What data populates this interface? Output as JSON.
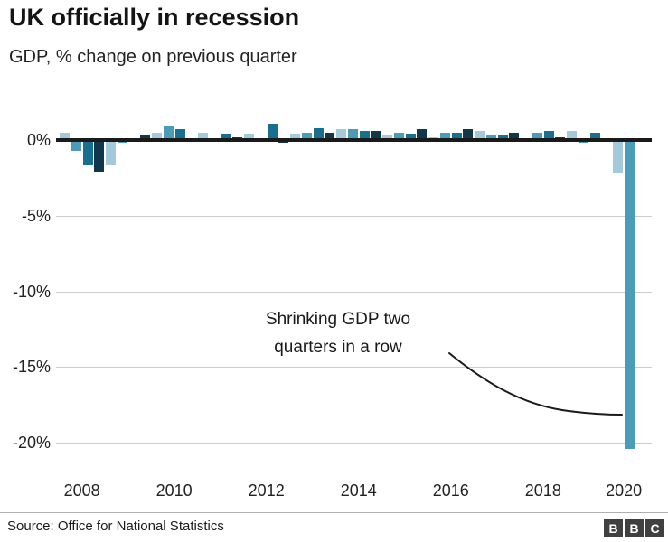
{
  "header": {
    "title": "UK officially in recession",
    "subtitle": "GDP, % change on previous quarter"
  },
  "annotation": {
    "line1": "Shrinking GDP two",
    "line2": "quarters in a row"
  },
  "footer": {
    "source": "Source: Office for National Statistics",
    "logo_letters": [
      "B",
      "B",
      "C"
    ]
  },
  "colors": {
    "bar_q1": "#a3c9da",
    "bar_q2": "#4a9db8",
    "bar_q3": "#17708f",
    "bar_q4": "#11384a",
    "zero_axis": "#1a1a1a",
    "gridline": "#cccccc",
    "text": "#222222",
    "annotation_curve": "#1a1a1a",
    "logo_background": "#404040"
  },
  "chart_data": {
    "type": "bar",
    "title": "UK officially in recession",
    "subtitle": "GDP, % change on previous quarter",
    "xlabel": "",
    "ylabel": "GDP, % change on previous quarter",
    "ylim": [
      -21.5,
      1.6
    ],
    "grid": "horizontal gridlines at each y tick, thick black line at 0",
    "legend": "none",
    "yticks": [
      0,
      -5,
      -10,
      -15,
      -20
    ],
    "ytick_labels": [
      "0%",
      "-5%",
      "-10%",
      "-15%",
      "-20%"
    ],
    "xtick_labels": [
      "2008",
      "2010",
      "2012",
      "2014",
      "2016",
      "2018",
      "2020"
    ],
    "quarters": [
      "2008 Q1",
      "2008 Q2",
      "2008 Q3",
      "2008 Q4",
      "2009 Q1",
      "2009 Q2",
      "2009 Q3",
      "2009 Q4",
      "2010 Q1",
      "2010 Q2",
      "2010 Q3",
      "2010 Q4",
      "2011 Q1",
      "2011 Q2",
      "2011 Q3",
      "2011 Q4",
      "2012 Q1",
      "2012 Q2",
      "2012 Q3",
      "2012 Q4",
      "2013 Q1",
      "2013 Q2",
      "2013 Q3",
      "2013 Q4",
      "2014 Q1",
      "2014 Q2",
      "2014 Q3",
      "2014 Q4",
      "2015 Q1",
      "2015 Q2",
      "2015 Q3",
      "2015 Q4",
      "2016 Q1",
      "2016 Q2",
      "2016 Q3",
      "2016 Q4",
      "2017 Q1",
      "2017 Q2",
      "2017 Q3",
      "2017 Q4",
      "2018 Q1",
      "2018 Q2",
      "2018 Q3",
      "2018 Q4",
      "2019 Q1",
      "2019 Q2",
      "2019 Q3",
      "2019 Q4",
      "2020 Q1",
      "2020 Q2"
    ],
    "values": [
      0.5,
      -0.7,
      -1.7,
      -2.1,
      -1.7,
      -0.2,
      0.1,
      0.3,
      0.5,
      0.9,
      0.7,
      0.1,
      0.5,
      0.1,
      0.4,
      0.2,
      0.4,
      -0.1,
      1.1,
      -0.2,
      0.4,
      0.5,
      0.8,
      0.5,
      0.7,
      0.7,
      0.6,
      0.6,
      0.3,
      0.5,
      0.4,
      0.7,
      0.2,
      0.5,
      0.5,
      0.7,
      0.6,
      0.3,
      0.3,
      0.5,
      0.1,
      0.5,
      0.6,
      0.2,
      0.6,
      -0.2,
      0.5,
      0.0,
      -2.2,
      -20.4
    ],
    "bar_color_rule": "colors cycle by quarter: Q1 light blue, Q2 medium teal, Q3 dark teal, Q4 dark navy"
  }
}
